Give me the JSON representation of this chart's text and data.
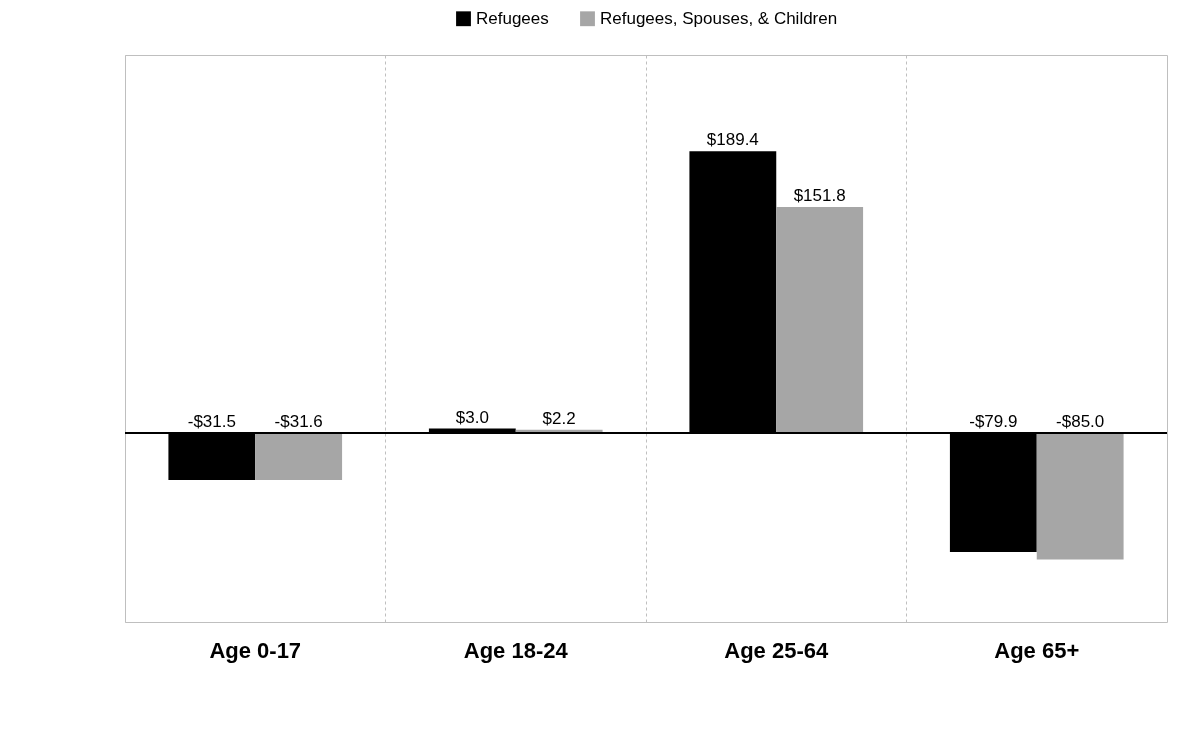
{
  "chart_data": {
    "type": "bar",
    "categories": [
      "Age 0-17",
      "Age 18-24",
      "Age 25-64",
      "Age 65+"
    ],
    "series": [
      {
        "name": "Refugees",
        "color": "#000000",
        "values": [
          -31.5,
          3.0,
          189.4,
          -79.9
        ],
        "value_labels": [
          "-$31.5",
          "$3.0",
          "$189.4",
          "-$79.9"
        ]
      },
      {
        "name": "Refugees, Spouses, & Children",
        "color": "#a6a6a6",
        "values": [
          -31.6,
          2.2,
          151.8,
          -85.0
        ],
        "value_labels": [
          "-$31.6",
          "$2.2",
          "$151.8",
          "-$85.0"
        ]
      }
    ],
    "ylim": [
      -127,
      254
    ],
    "tick_labels": "x",
    "grid": "x",
    "legend": "top"
  }
}
